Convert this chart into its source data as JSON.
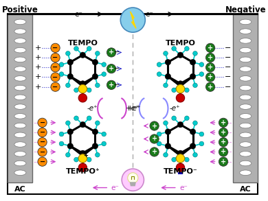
{
  "bg_color": "#ffffff",
  "positive_label": "Positive",
  "negative_label": "Negative",
  "ac_label": "AC",
  "tempo_label": "TEMPO",
  "tempo_plus_label": "TEMPO⁺",
  "tempo_minus_label": "TEMPO⁻",
  "orange_color": "#FF8C00",
  "green_color": "#1a7a1a",
  "cyan_color": "#00CCCC",
  "yellow_color": "#FFD700",
  "red_color": "#CC0000",
  "electrode_gray": "#b0b0b0",
  "electrode_dark": "#888888"
}
